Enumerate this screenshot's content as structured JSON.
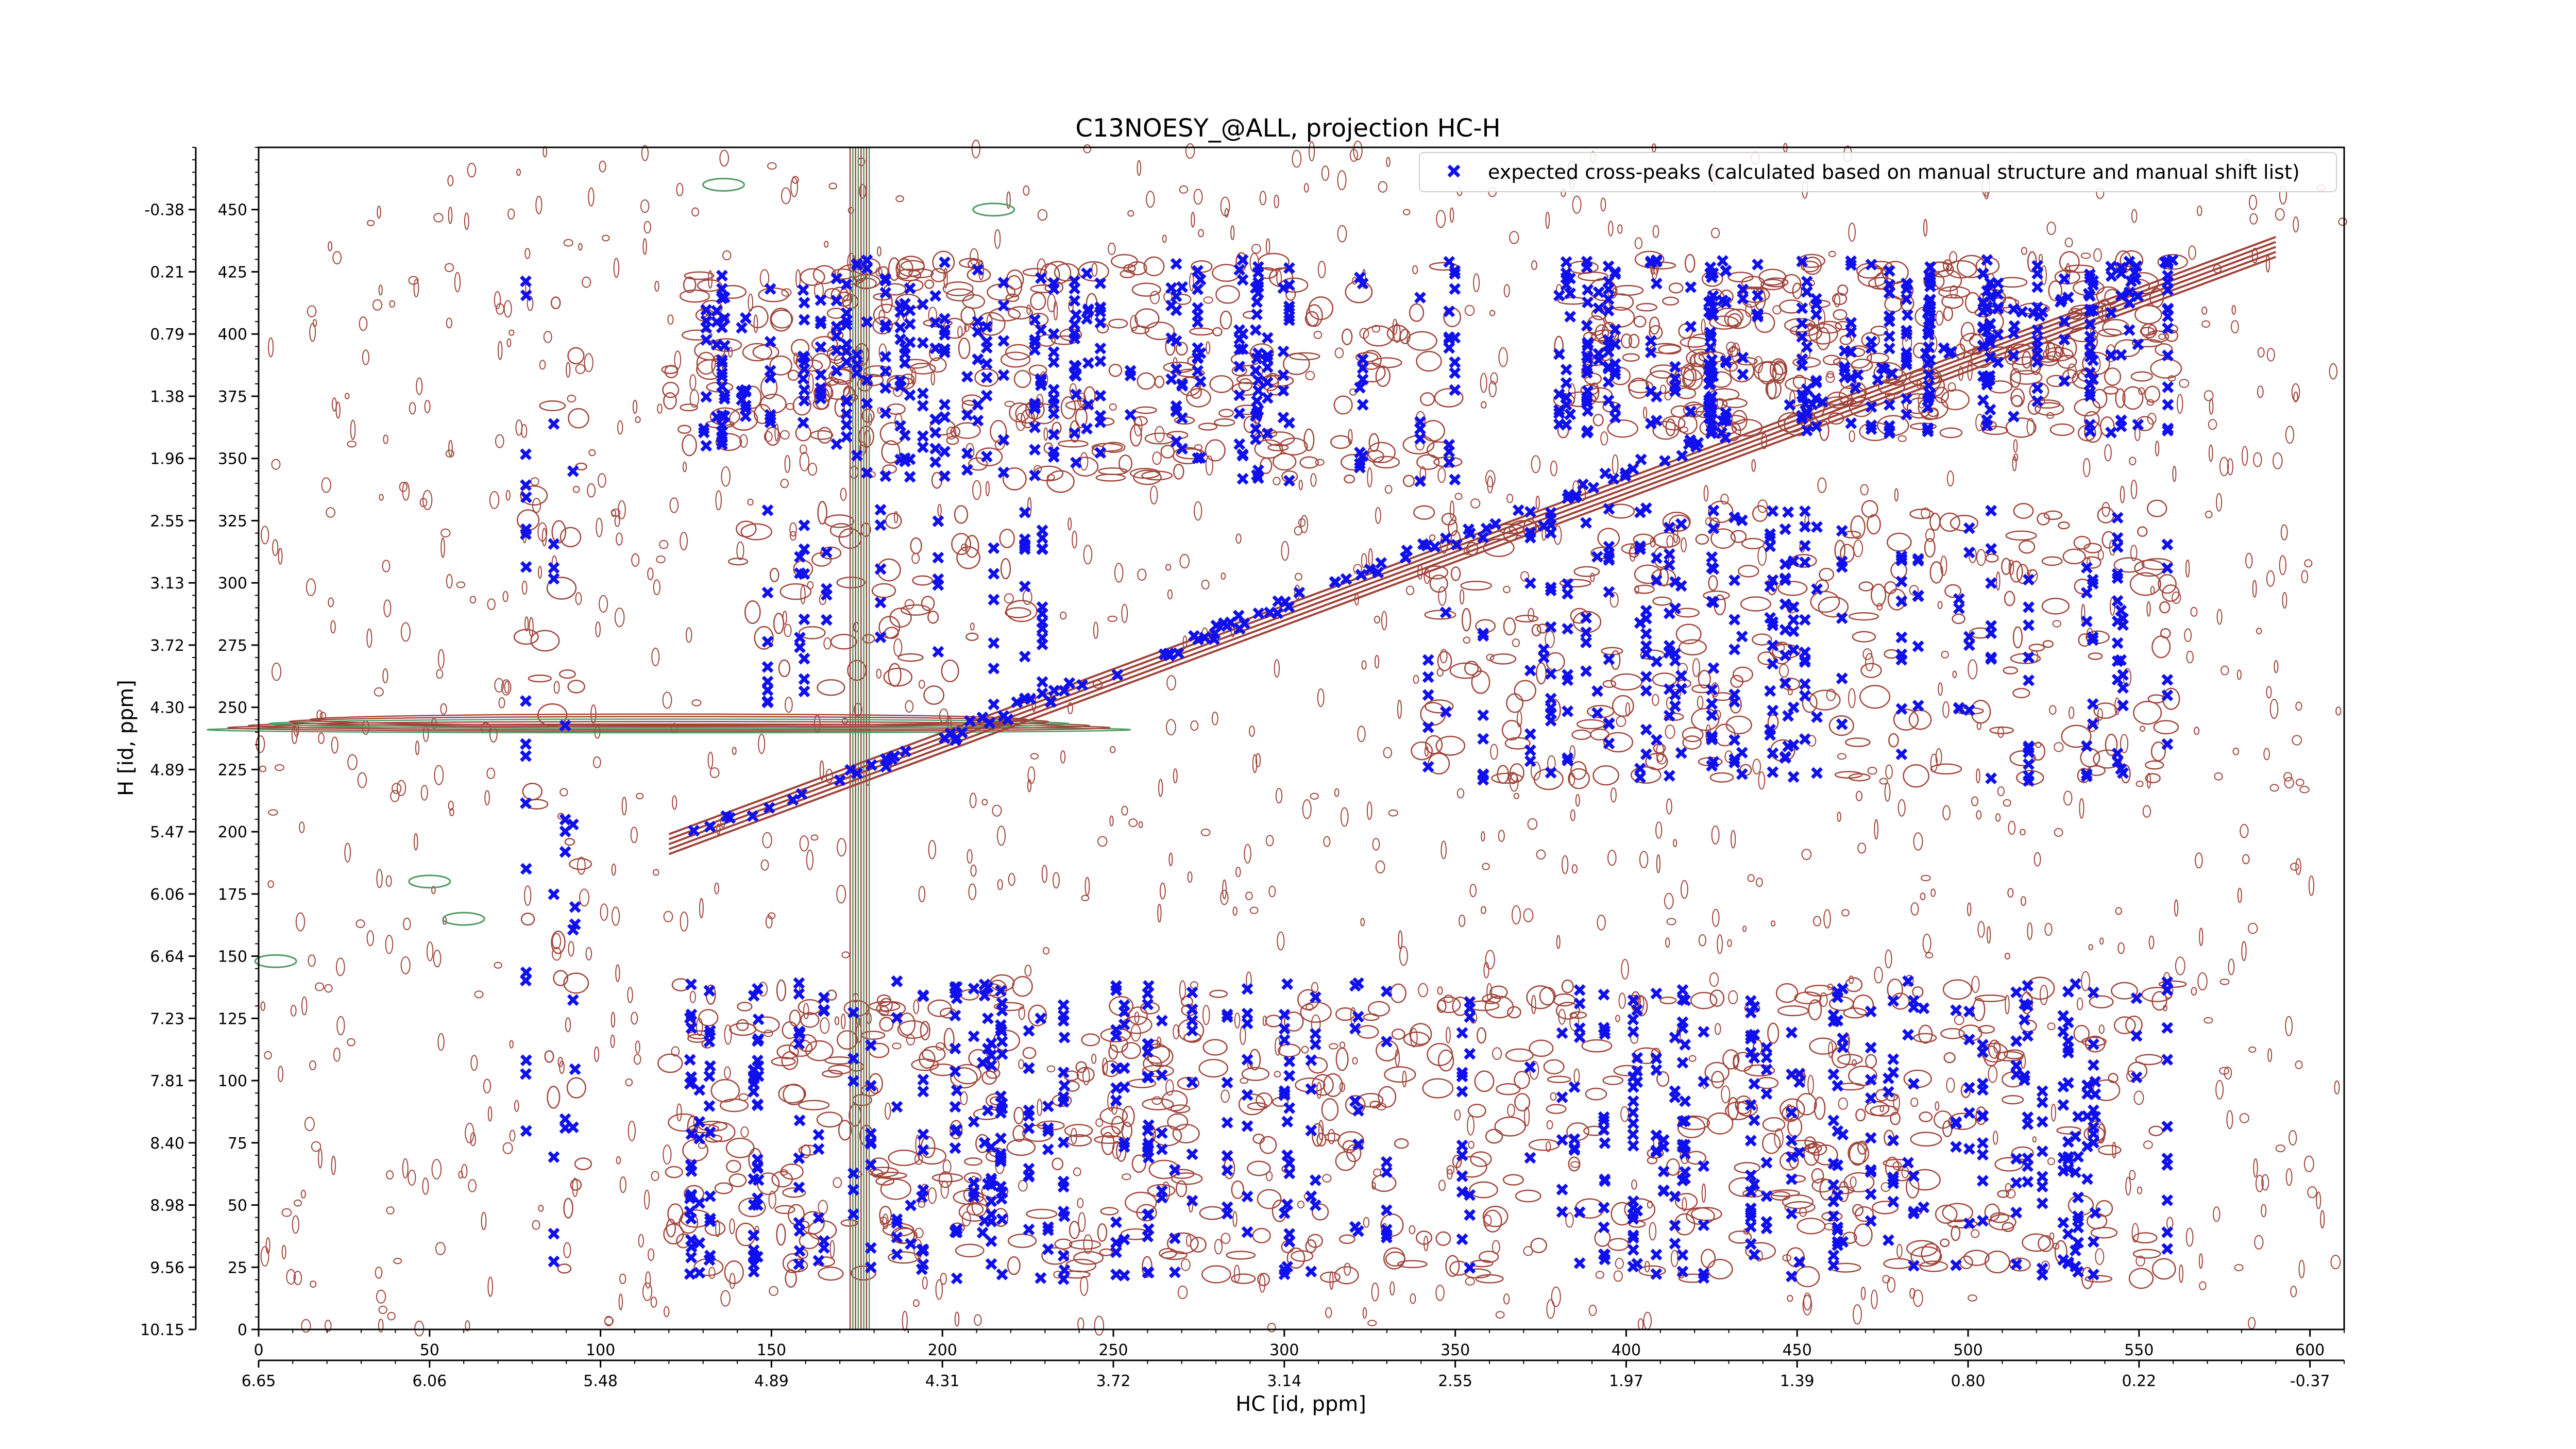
{
  "chart_data": {
    "type": "scatter",
    "title": "C13NOESY_@ALL, projection HC-H",
    "xlabel": "HC [id, ppm]",
    "ylabel": "H [id, ppm]",
    "xlim": [
      0,
      610
    ],
    "ylim": [
      0,
      475
    ],
    "grid": false,
    "legend_position": "top-right",
    "x_ticks_index": [
      0,
      50,
      100,
      150,
      200,
      250,
      300,
      350,
      400,
      450,
      500,
      550,
      600
    ],
    "x_ticks_ppm": [
      "6.65",
      "6.06",
      "5.48",
      "4.89",
      "4.31",
      "3.72",
      "3.14",
      "2.55",
      "1.97",
      "1.39",
      "0.80",
      "0.22",
      "-0.37"
    ],
    "y_ticks_index": [
      0,
      25,
      50,
      75,
      100,
      125,
      150,
      175,
      200,
      225,
      250,
      275,
      300,
      325,
      350,
      375,
      400,
      425,
      450
    ],
    "y_ticks_ppm": [
      "10.15",
      "9.56",
      "8.98",
      "8.40",
      "7.81",
      "7.23",
      "6.64",
      "6.06",
      "5.47",
      "4.89",
      "4.30",
      "3.72",
      "3.13",
      "2.55",
      "1.96",
      "1.38",
      "0.79",
      "0.21",
      "-0.38"
    ],
    "colors": {
      "points": "#1010ee",
      "contour_positive": "#a0443a",
      "contour_negative": "#4f9a62"
    },
    "series": [
      {
        "name": "expected cross-peaks (calculated based on manual structure and manual shift list)",
        "marker": "x",
        "points_description_free": true,
        "clusters": [
          {
            "x": [
              120,
              175
            ],
            "y": [
              355,
              425
            ],
            "n": 90
          },
          {
            "x": [
              175,
              270
            ],
            "y": [
              340,
              430
            ],
            "n": 170
          },
          {
            "x": [
              270,
              350
            ],
            "y": [
              340,
              430
            ],
            "n": 110
          },
          {
            "x": [
              380,
              470
            ],
            "y": [
              360,
              430
            ],
            "n": 180
          },
          {
            "x": [
              470,
              560
            ],
            "y": [
              360,
              430
            ],
            "n": 170
          },
          {
            "x": [
              140,
              230
            ],
            "y": [
              250,
              330
            ],
            "n": 60
          },
          {
            "x": [
              340,
              560
            ],
            "y": [
              220,
              330
            ],
            "n": 280
          },
          {
            "x": [
              120,
              180
            ],
            "y": [
              20,
              140
            ],
            "n": 110
          },
          {
            "x": [
              180,
              330
            ],
            "y": [
              20,
              140
            ],
            "n": 250
          },
          {
            "x": [
              330,
              420
            ],
            "y": [
              20,
              140
            ],
            "n": 110
          },
          {
            "x": [
              420,
              560
            ],
            "y": [
              20,
              140
            ],
            "n": 220
          },
          {
            "x": [
              78,
              95
            ],
            "y": [
              20,
              430
            ],
            "n": 40
          }
        ],
        "diagonal": {
          "x": [
            120,
            560
          ],
          "y": [
            195,
            430
          ],
          "n": 130
        }
      }
    ]
  }
}
